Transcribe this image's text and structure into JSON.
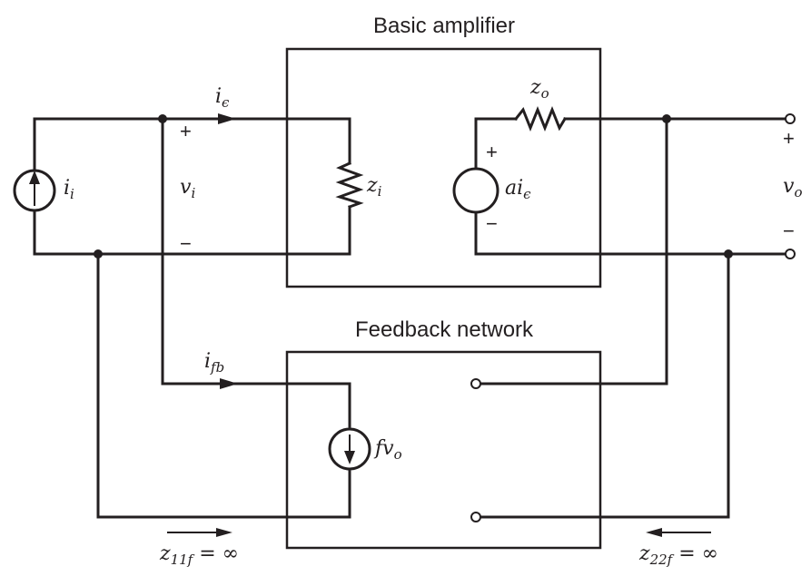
{
  "blocks": {
    "amplifier_title": "Basic amplifier",
    "feedback_title": "Feedback network"
  },
  "labels": {
    "ie": {
      "base": "i",
      "sub": "ϵ"
    },
    "ii": {
      "base": "i",
      "sub": "i"
    },
    "vi": {
      "base": "v",
      "sub": "i"
    },
    "zi": {
      "base": "z",
      "sub": "i"
    },
    "zo": {
      "base": "z",
      "sub": "o"
    },
    "aie": {
      "base": "ai",
      "sub": "ϵ"
    },
    "vo": {
      "base": "v",
      "sub": "o"
    },
    "ifb": {
      "base": "i",
      "sub": "fb"
    },
    "fvo": {
      "base": "fv",
      "sub": "o"
    },
    "z11f": {
      "base": "z",
      "sub": "11f",
      "rest": " = ∞"
    },
    "z22f": {
      "base": "z",
      "sub": "22f",
      "rest": " = ∞"
    }
  },
  "signs": {
    "plus": "+",
    "minus": "−"
  },
  "colors": {
    "ink": "#231f20",
    "background": "#ffffff"
  }
}
